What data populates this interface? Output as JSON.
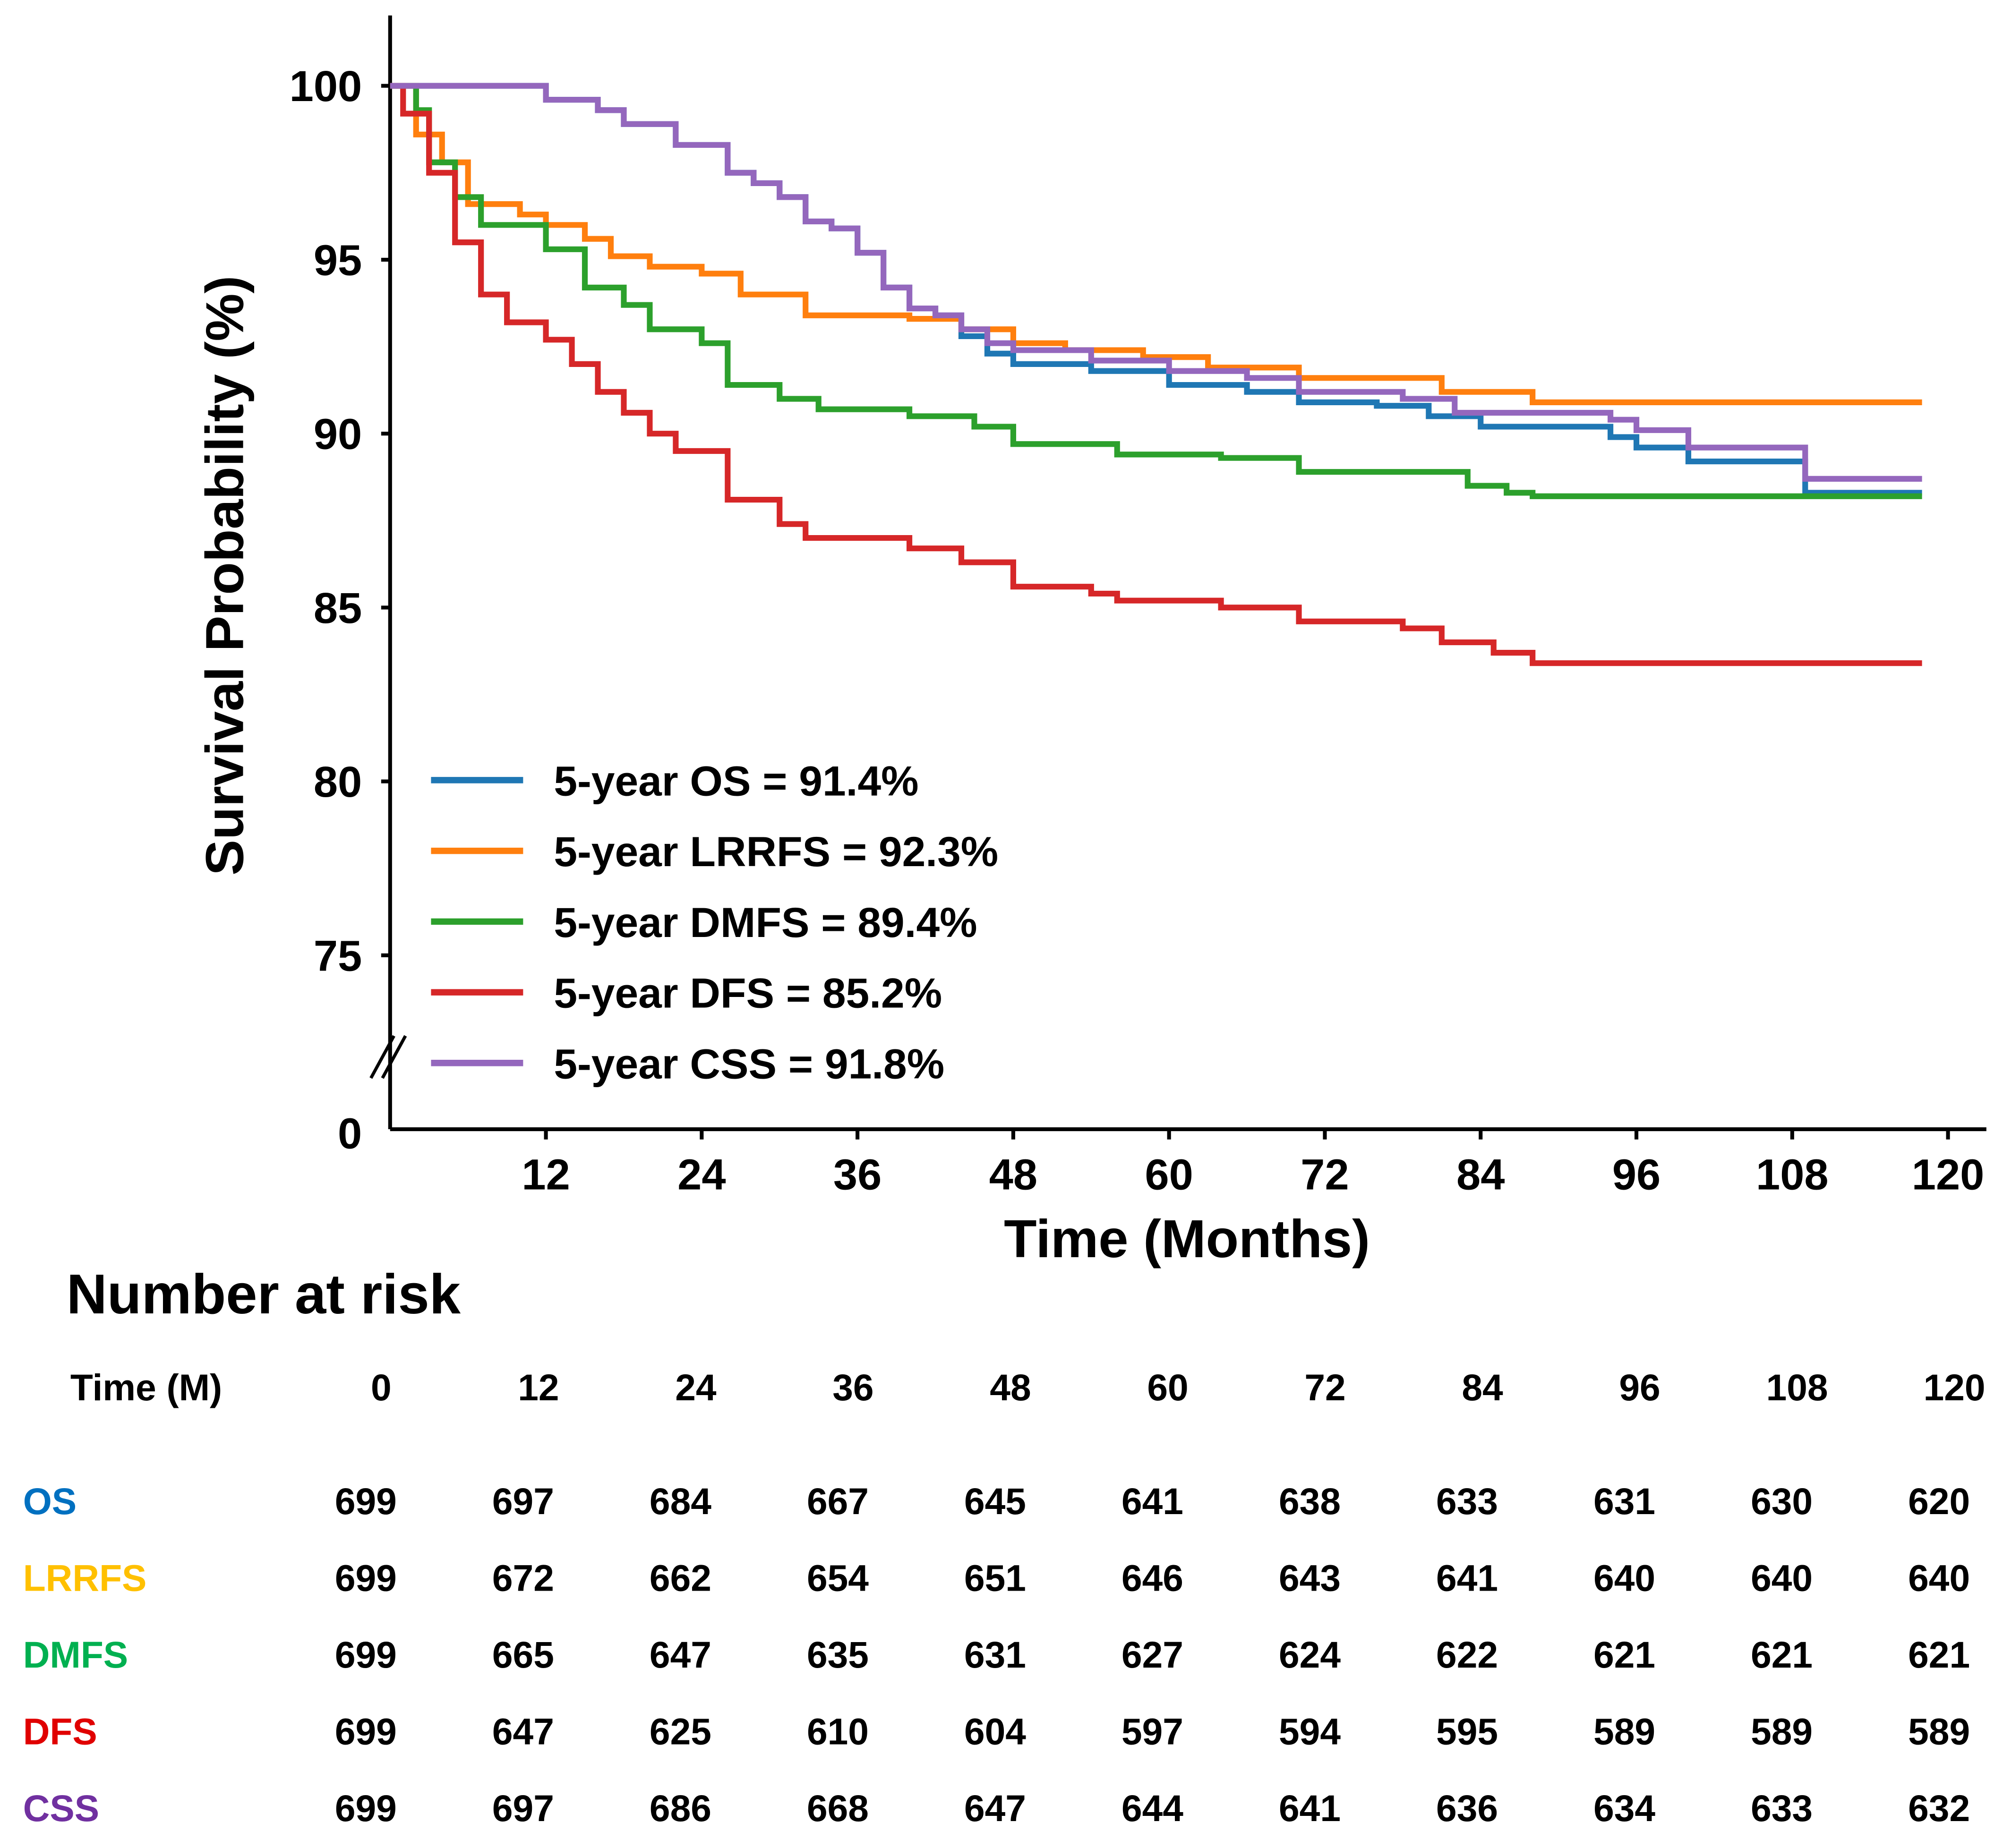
{
  "chart_data": {
    "type": "line",
    "title": "",
    "xlabel": "Time (Months)",
    "ylabel": "Survival Probability (%)",
    "xlim": [
      0,
      120
    ],
    "ylim": [
      72,
      100
    ],
    "y_axis_break": true,
    "xticks": [
      12,
      24,
      36,
      48,
      60,
      72,
      84,
      96,
      108,
      120
    ],
    "yticks": [
      100,
      95,
      90,
      85,
      80,
      75,
      0
    ],
    "grid": false,
    "legend_position": "bottom-left",
    "series": [
      {
        "name": "5-year OS = 91.4%",
        "color": "#1f77b4",
        "points": [
          [
            0,
            100
          ],
          [
            10,
            100
          ],
          [
            12,
            99.6
          ],
          [
            16,
            99.3
          ],
          [
            18,
            98.9
          ],
          [
            22,
            98.3
          ],
          [
            26,
            97.5
          ],
          [
            28,
            97.2
          ],
          [
            30,
            96.8
          ],
          [
            32,
            96.1
          ],
          [
            34,
            95.9
          ],
          [
            36,
            95.2
          ],
          [
            38,
            94.2
          ],
          [
            40,
            93.6
          ],
          [
            42,
            93.4
          ],
          [
            44,
            92.8
          ],
          [
            46,
            92.3
          ],
          [
            48,
            92.0
          ],
          [
            54,
            91.8
          ],
          [
            60,
            91.4
          ],
          [
            66,
            91.2
          ],
          [
            70,
            90.9
          ],
          [
            76,
            90.8
          ],
          [
            80,
            90.5
          ],
          [
            84,
            90.2
          ],
          [
            94,
            89.9
          ],
          [
            96,
            89.6
          ],
          [
            100,
            89.2
          ],
          [
            109,
            89.2
          ],
          [
            109,
            88.3
          ],
          [
            118,
            88.3
          ]
        ]
      },
      {
        "name": "5-year LRRFS = 92.3%",
        "color": "#ff7f0e",
        "points": [
          [
            0,
            100
          ],
          [
            2,
            98.6
          ],
          [
            4,
            97.8
          ],
          [
            6,
            96.6
          ],
          [
            10,
            96.3
          ],
          [
            12,
            96.0
          ],
          [
            15,
            95.6
          ],
          [
            17,
            95.1
          ],
          [
            20,
            94.8
          ],
          [
            24,
            94.6
          ],
          [
            27,
            94.0
          ],
          [
            32,
            93.4
          ],
          [
            40,
            93.3
          ],
          [
            44,
            93.0
          ],
          [
            48,
            92.6
          ],
          [
            52,
            92.4
          ],
          [
            58,
            92.2
          ],
          [
            63,
            91.9
          ],
          [
            70,
            91.6
          ],
          [
            78,
            91.6
          ],
          [
            81,
            91.2
          ],
          [
            88,
            90.9
          ],
          [
            118,
            90.9
          ]
        ]
      },
      {
        "name": "5-year DMFS = 89.4%",
        "color": "#2ca02c",
        "points": [
          [
            0,
            100
          ],
          [
            2,
            99.3
          ],
          [
            3,
            97.8
          ],
          [
            5,
            96.8
          ],
          [
            7,
            96.0
          ],
          [
            12,
            95.3
          ],
          [
            15,
            94.2
          ],
          [
            18,
            93.7
          ],
          [
            20,
            93.0
          ],
          [
            24,
            92.6
          ],
          [
            26,
            91.4
          ],
          [
            30,
            91.0
          ],
          [
            33,
            90.7
          ],
          [
            40,
            90.5
          ],
          [
            45,
            90.2
          ],
          [
            48,
            89.7
          ],
          [
            56,
            89.4
          ],
          [
            64,
            89.3
          ],
          [
            70,
            88.9
          ],
          [
            80,
            88.9
          ],
          [
            83,
            88.5
          ],
          [
            86,
            88.3
          ],
          [
            88,
            88.2
          ],
          [
            118,
            88.2
          ]
        ]
      },
      {
        "name": "5-year DFS = 85.2%",
        "color": "#d62728",
        "points": [
          [
            0,
            100
          ],
          [
            1,
            99.2
          ],
          [
            3,
            97.5
          ],
          [
            5,
            95.5
          ],
          [
            7,
            94.0
          ],
          [
            9,
            93.2
          ],
          [
            12,
            92.7
          ],
          [
            14,
            92.0
          ],
          [
            16,
            91.2
          ],
          [
            18,
            90.6
          ],
          [
            20,
            90.0
          ],
          [
            22,
            89.5
          ],
          [
            26,
            88.1
          ],
          [
            30,
            87.4
          ],
          [
            32,
            87.0
          ],
          [
            40,
            86.7
          ],
          [
            44,
            86.3
          ],
          [
            48,
            85.6
          ],
          [
            54,
            85.4
          ],
          [
            56,
            85.2
          ],
          [
            64,
            85.0
          ],
          [
            70,
            84.6
          ],
          [
            78,
            84.4
          ],
          [
            81,
            84.0
          ],
          [
            85,
            83.7
          ],
          [
            88,
            83.4
          ],
          [
            118,
            83.4
          ]
        ]
      },
      {
        "name": "5-year CSS = 91.8%",
        "color": "#9467bd",
        "points": [
          [
            0,
            100
          ],
          [
            10,
            100
          ],
          [
            12,
            99.6
          ],
          [
            16,
            99.3
          ],
          [
            18,
            98.9
          ],
          [
            22,
            98.3
          ],
          [
            26,
            97.5
          ],
          [
            28,
            97.2
          ],
          [
            30,
            96.8
          ],
          [
            32,
            96.1
          ],
          [
            34,
            95.9
          ],
          [
            36,
            95.2
          ],
          [
            38,
            94.2
          ],
          [
            40,
            93.6
          ],
          [
            42,
            93.4
          ],
          [
            44,
            93.0
          ],
          [
            46,
            92.6
          ],
          [
            48,
            92.4
          ],
          [
            54,
            92.1
          ],
          [
            60,
            91.8
          ],
          [
            66,
            91.6
          ],
          [
            70,
            91.2
          ],
          [
            78,
            91.0
          ],
          [
            82,
            90.6
          ],
          [
            94,
            90.4
          ],
          [
            96,
            90.1
          ],
          [
            100,
            89.6
          ],
          [
            109,
            89.6
          ],
          [
            109,
            88.7
          ],
          [
            118,
            88.7
          ]
        ]
      }
    ]
  },
  "risk_table": {
    "title": "Number at risk",
    "header_label": "Time (M)",
    "times": [
      "0",
      "12",
      "24",
      "36",
      "48",
      "60",
      "72",
      "84",
      "96",
      "108",
      "120"
    ],
    "rows": [
      {
        "label": "OS",
        "color": "#0070c0",
        "values": [
          "699",
          "697",
          "684",
          "667",
          "645",
          "641",
          "638",
          "633",
          "631",
          "630",
          "620"
        ]
      },
      {
        "label": "LRRFS",
        "color": "#ffc000",
        "values": [
          "699",
          "672",
          "662",
          "654",
          "651",
          "646",
          "643",
          "641",
          "640",
          "640",
          "640"
        ]
      },
      {
        "label": "DMFS",
        "color": "#00b050",
        "values": [
          "699",
          "665",
          "647",
          "635",
          "631",
          "627",
          "624",
          "622",
          "621",
          "621",
          "621"
        ]
      },
      {
        "label": "DFS",
        "color": "#e00000",
        "values": [
          "699",
          "647",
          "625",
          "610",
          "604",
          "597",
          "594",
          "595",
          "589",
          "589",
          "589"
        ]
      },
      {
        "label": "CSS",
        "color": "#7030a0",
        "values": [
          "699",
          "697",
          "686",
          "668",
          "647",
          "644",
          "641",
          "636",
          "634",
          "633",
          "632"
        ]
      }
    ]
  }
}
